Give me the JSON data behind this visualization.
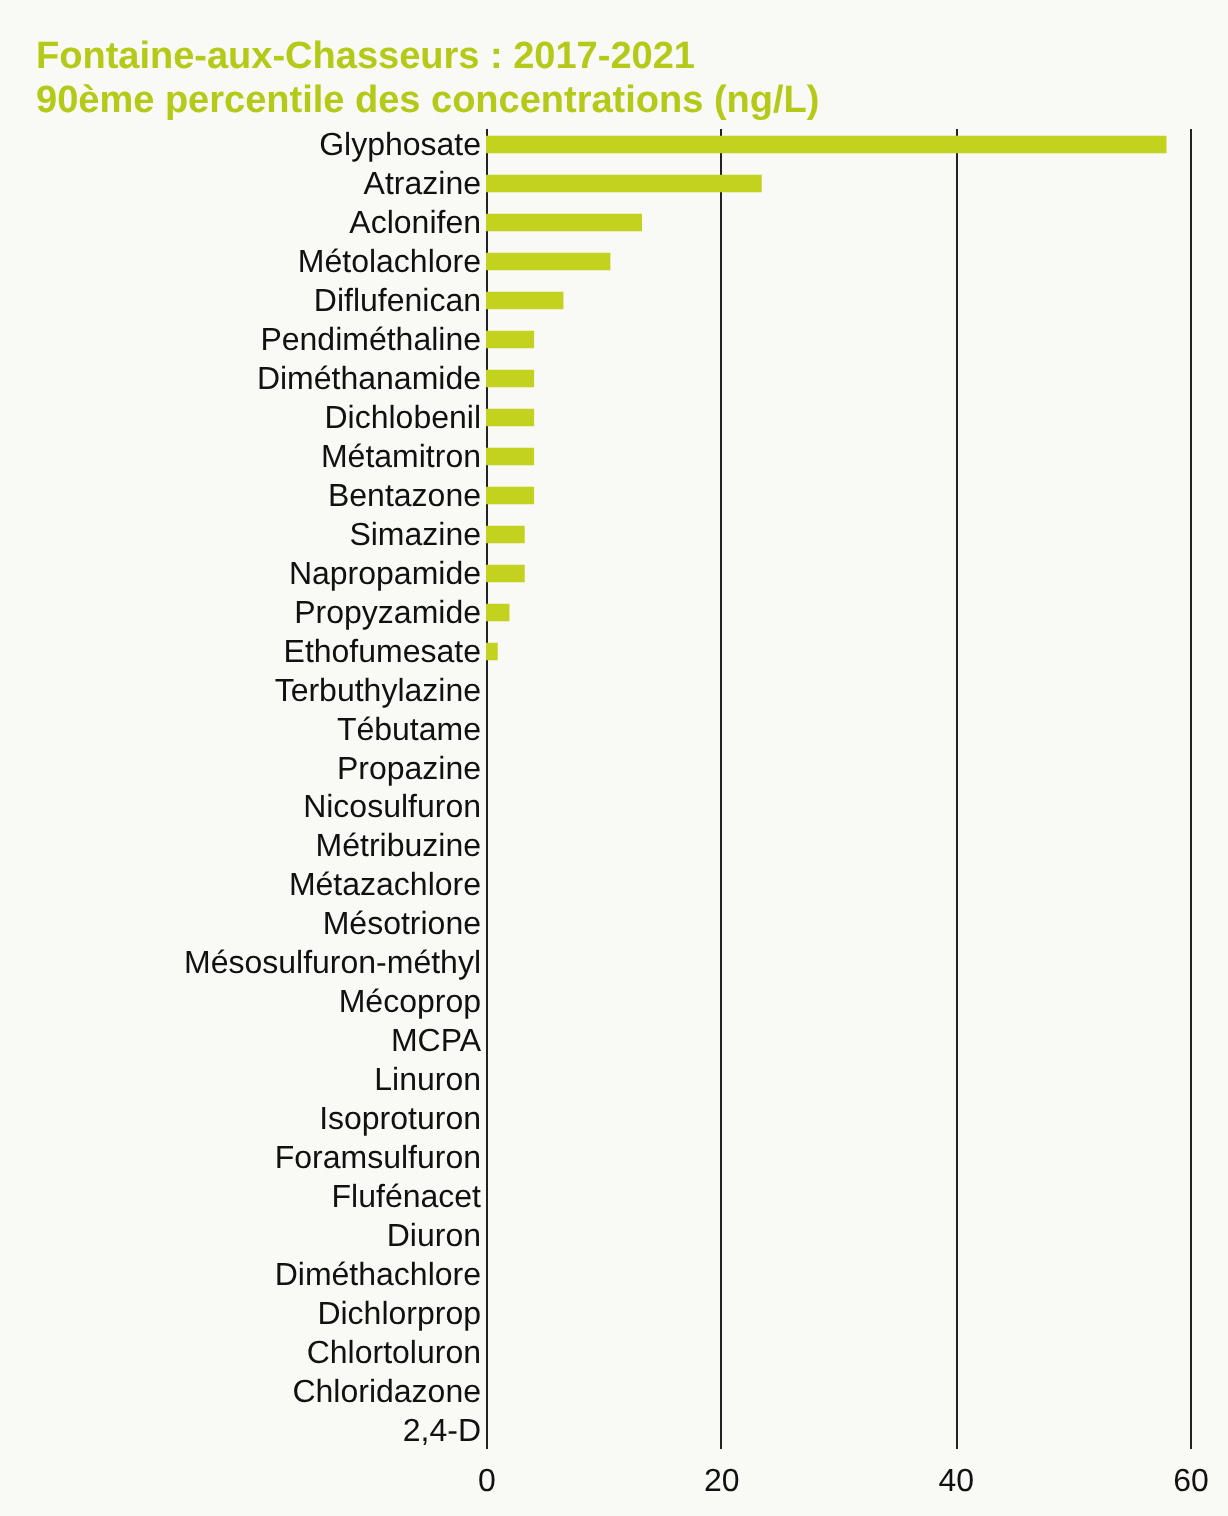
{
  "chart_data": {
    "type": "bar",
    "orientation": "horizontal",
    "title": [
      "Fontaine-aux-Chasseurs : 2017-2021",
      "90ème percentile des concentrations (ng/L)"
    ],
    "categories": [
      "Glyphosate",
      "Atrazine",
      "Aclonifen",
      "Métolachlore",
      "Diflufenican",
      "Pendiméthaline",
      "Diméthanamide",
      "Dichlobenil",
      "Métamitron",
      "Bentazone",
      "Simazine",
      "Napropamide",
      "Propyzamide",
      "Ethofumesate",
      "Terbuthylazine",
      "Tébutame",
      "Propazine",
      "Nicosulfuron",
      "Métribuzine",
      "Métazachlore",
      "Mésotrione",
      "Mésosulfuron-méthyl",
      "Mécoprop",
      "MCPA",
      "Linuron",
      "Isoproturon",
      "Foramsulfuron",
      "Flufénacet",
      "Diuron",
      "Diméthachlore",
      "Dichlorprop",
      "Chlortoluron",
      "Chloridazone",
      "2,4-D"
    ],
    "values": [
      58,
      23.5,
      13.3,
      10.6,
      6.6,
      4.1,
      4.1,
      4.1,
      4.1,
      4.1,
      3.3,
      3.3,
      2.0,
      1.0,
      0,
      0,
      0,
      0,
      0,
      0,
      0,
      0,
      0,
      0,
      0,
      0,
      0,
      0,
      0,
      0,
      0,
      0,
      0,
      0
    ],
    "color": "#c3d21f",
    "xlim": [
      0,
      60
    ],
    "xticks": [
      0,
      20,
      40,
      60
    ],
    "grid": "x"
  }
}
